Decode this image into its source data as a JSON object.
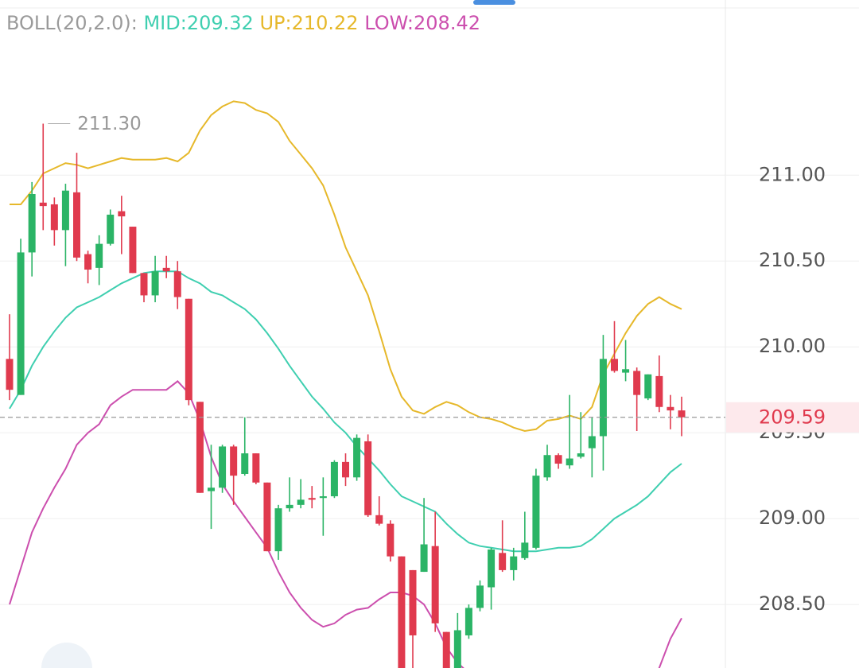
{
  "chart_data": {
    "type": "candlestick",
    "categories": [
      null,
      null,
      null,
      null,
      null,
      null,
      null,
      null,
      null,
      null,
      null,
      null,
      null,
      null,
      null,
      null,
      null,
      null,
      null,
      null,
      null,
      null,
      null,
      null,
      null,
      null,
      null,
      null,
      null,
      null,
      null,
      null,
      null,
      null,
      null,
      null,
      null,
      null,
      null,
      null,
      null,
      null,
      null,
      null,
      null,
      null,
      null,
      null,
      null,
      null,
      null,
      null,
      null,
      null,
      null,
      null,
      null,
      null,
      null,
      null,
      null
    ],
    "open": [
      209.93,
      209.72,
      210.55,
      210.84,
      210.83,
      210.68,
      210.9,
      210.54,
      210.46,
      210.6,
      210.79,
      210.7,
      210.43,
      210.3,
      210.46,
      210.44,
      210.28,
      209.68,
      209.16,
      209.18,
      209.42,
      209.26,
      209.38,
      209.21,
      208.81,
      209.06,
      209.08,
      209.12,
      209.12,
      209.13,
      209.33,
      209.24,
      209.45,
      209.02,
      208.97,
      208.78,
      208.7,
      208.69,
      208.84,
      208.34,
      208.13,
      208.32,
      208.48,
      208.6,
      208.8,
      208.7,
      208.77,
      208.83,
      209.24,
      209.37,
      209.31,
      209.36,
      209.41,
      209.48,
      209.93,
      209.85,
      209.86,
      209.7,
      209.83,
      209.65,
      209.63
    ],
    "high": [
      210.19,
      210.63,
      210.96,
      211.3,
      210.87,
      210.95,
      211.13,
      210.56,
      210.65,
      210.8,
      210.88,
      210.7,
      210.43,
      210.53,
      210.53,
      210.5,
      210.28,
      209.68,
      209.43,
      209.43,
      209.43,
      209.59,
      209.38,
      209.21,
      209.08,
      209.24,
      209.23,
      209.19,
      209.24,
      209.34,
      209.38,
      209.49,
      209.49,
      209.13,
      208.99,
      208.78,
      208.7,
      209.12,
      209.04,
      208.34,
      208.45,
      208.5,
      208.64,
      208.83,
      208.99,
      208.83,
      209.04,
      209.29,
      209.43,
      209.38,
      209.72,
      209.62,
      209.59,
      210.07,
      210.15,
      210.04,
      209.88,
      209.84,
      209.95,
      209.72,
      209.71
    ],
    "low": [
      209.69,
      209.72,
      210.41,
      210.68,
      210.59,
      210.47,
      210.5,
      210.37,
      210.36,
      210.59,
      210.54,
      210.43,
      210.26,
      210.26,
      210.4,
      210.22,
      209.66,
      209.15,
      208.94,
      209.15,
      209.08,
      209.25,
      209.2,
      208.81,
      208.76,
      209.04,
      209.06,
      209.06,
      208.9,
      209.12,
      209.19,
      209.22,
      209.01,
      208.96,
      208.75,
      208.13,
      208.13,
      208.69,
      208.34,
      208.13,
      208.13,
      208.3,
      208.46,
      208.47,
      208.69,
      208.64,
      208.76,
      208.82,
      209.22,
      209.29,
      209.29,
      209.35,
      209.24,
      209.28,
      209.85,
      209.8,
      209.51,
      209.69,
      209.62,
      209.52,
      209.48
    ],
    "close": [
      209.75,
      210.55,
      210.89,
      210.82,
      210.68,
      210.91,
      210.52,
      210.45,
      210.6,
      210.77,
      210.76,
      210.43,
      210.3,
      210.44,
      210.44,
      210.29,
      209.69,
      209.15,
      209.18,
      209.42,
      209.25,
      209.38,
      209.21,
      208.81,
      209.06,
      209.08,
      209.11,
      209.11,
      209.13,
      209.33,
      209.24,
      209.47,
      209.02,
      208.97,
      208.78,
      208.13,
      208.32,
      208.85,
      208.39,
      208.13,
      208.35,
      208.48,
      208.61,
      208.82,
      208.7,
      208.78,
      208.86,
      209.25,
      209.37,
      209.32,
      209.35,
      209.38,
      209.48,
      209.93,
      209.86,
      209.87,
      209.72,
      209.84,
      209.65,
      209.63,
      209.59
    ],
    "up_color": "#2bb466",
    "down_color": "#e03a4e",
    "indicator_label": "BOLL(20,2.0):",
    "lines": [
      {
        "label": "MID:209.32",
        "color": "#3fcfb0",
        "values": [
          209.64,
          209.75,
          209.89,
          210.0,
          210.09,
          210.17,
          210.23,
          210.26,
          210.29,
          210.33,
          210.37,
          210.4,
          210.43,
          210.44,
          210.44,
          210.44,
          210.4,
          210.37,
          210.32,
          210.3,
          210.26,
          210.22,
          210.16,
          210.08,
          209.99,
          209.89,
          209.8,
          209.71,
          209.64,
          209.56,
          209.5,
          209.42,
          209.35,
          209.28,
          209.2,
          209.13,
          209.1,
          209.07,
          209.04,
          208.97,
          208.91,
          208.86,
          208.84,
          208.83,
          208.82,
          208.81,
          208.81,
          208.81,
          208.82,
          208.83,
          208.83,
          208.84,
          208.88,
          208.94,
          209.0,
          209.04,
          209.08,
          209.13,
          209.2,
          209.27,
          209.32
        ]
      },
      {
        "label": "UP:210.22",
        "color": "#e6b82a",
        "values": [
          210.83,
          210.83,
          210.91,
          211.01,
          211.04,
          211.07,
          211.06,
          211.04,
          211.06,
          211.08,
          211.1,
          211.09,
          211.09,
          211.09,
          211.1,
          211.08,
          211.13,
          211.26,
          211.35,
          211.4,
          211.43,
          211.42,
          211.38,
          211.36,
          211.31,
          211.2,
          211.12,
          211.04,
          210.94,
          210.77,
          210.58,
          210.44,
          210.3,
          210.09,
          209.87,
          209.71,
          209.63,
          209.61,
          209.65,
          209.68,
          209.66,
          209.62,
          209.59,
          209.58,
          209.56,
          209.53,
          209.51,
          209.52,
          209.57,
          209.58,
          209.6,
          209.58,
          209.65,
          209.84,
          209.96,
          210.08,
          210.18,
          210.25,
          210.29,
          210.25,
          210.22
        ]
      },
      {
        "label": "LOW:208.42",
        "color": "#cc4fae",
        "values": [
          208.5,
          208.71,
          208.92,
          209.06,
          209.18,
          209.29,
          209.43,
          209.5,
          209.55,
          209.66,
          209.71,
          209.75,
          209.75,
          209.75,
          209.75,
          209.8,
          209.73,
          209.57,
          209.36,
          209.2,
          209.1,
          209.01,
          208.92,
          208.83,
          208.69,
          208.57,
          208.48,
          208.41,
          208.37,
          208.39,
          208.44,
          208.47,
          208.48,
          208.53,
          208.57,
          208.57,
          208.55,
          208.5,
          208.39,
          208.25,
          208.16,
          208.1,
          208.09,
          208.08,
          208.08,
          208.09,
          208.11,
          208.1,
          208.07,
          208.08,
          208.06,
          208.1,
          208.11,
          208.04,
          208.04,
          208.0,
          207.98,
          208.01,
          208.13,
          208.3,
          208.42
        ]
      }
    ],
    "max_marker": {
      "value": 211.3,
      "label": "211.30"
    },
    "last_price": {
      "value": 209.59,
      "label": "209.59"
    },
    "ylim": [
      208.13,
      212.02
    ],
    "yticks": [
      {
        "value": 208.5,
        "label": "208.50"
      },
      {
        "value": 209,
        "label": "209.00"
      },
      {
        "value": 209.5,
        "label": "209.50"
      },
      {
        "value": 210,
        "label": "210.00"
      },
      {
        "value": 210.5,
        "label": "210.50"
      },
      {
        "value": 211,
        "label": "211.00"
      }
    ],
    "grid": true
  }
}
